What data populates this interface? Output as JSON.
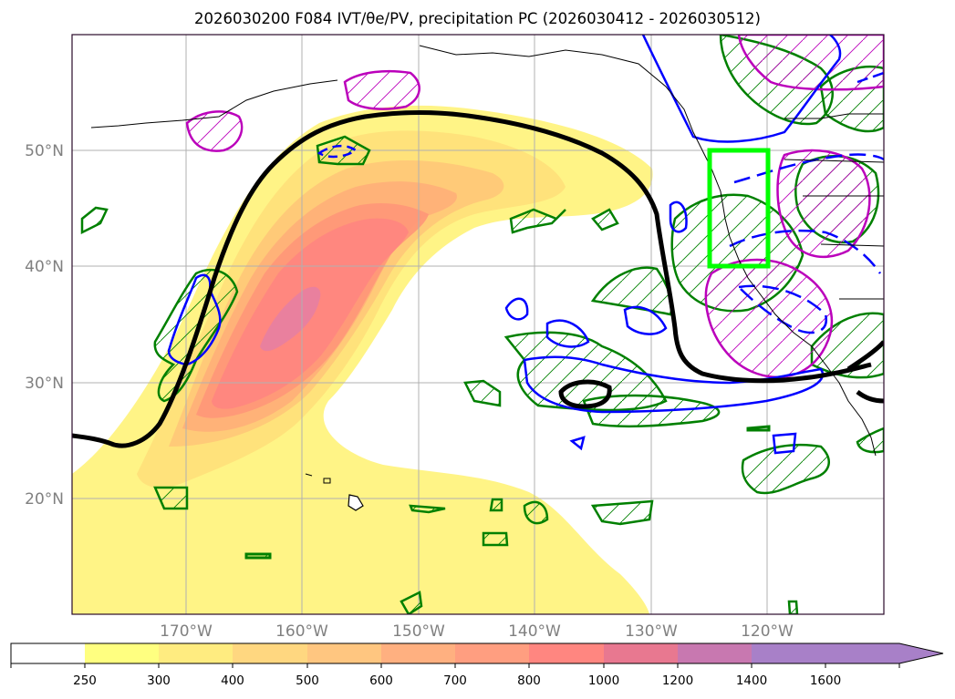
{
  "figure": {
    "title": "2026030200 F084 IVT/θe/PV, precipitation PC (2026030412 - 2026030512)"
  },
  "map": {
    "lon_range": [
      -180,
      -110
    ],
    "lat_range": [
      10,
      60
    ],
    "grid": true,
    "lat_labels": [
      "20°N",
      "30°N",
      "40°N",
      "50°N"
    ],
    "lat_values": [
      20,
      30,
      40,
      50
    ],
    "lon_labels": [
      "170°W",
      "160°W",
      "150°W",
      "140°W",
      "130°W",
      "120°W"
    ],
    "lon_values": [
      -170,
      -160,
      -150,
      -140,
      -130,
      -120
    ],
    "highlight_box": {
      "lon": [
        -125,
        -120
      ],
      "lat": [
        40,
        50
      ],
      "color": "#00ff00"
    }
  },
  "colorbar": {
    "ticks": [
      "250",
      "300",
      "400",
      "500",
      "600",
      "700",
      "800",
      "1000",
      "1200",
      "1400",
      "1600"
    ],
    "colors": [
      "#ffffff",
      "#ffff80",
      "#ffec80",
      "#ffd780",
      "#ffc680",
      "#ffb080",
      "#ff9e80",
      "#ff8680",
      "#e87890",
      "#c878b0",
      "#a880c8"
    ],
    "extend": "max"
  },
  "layers": {
    "ivt_colors": [
      "#fff380",
      "#ffe07a",
      "#ffc878",
      "#ffb078",
      "#ff9878",
      "#ff8680",
      "#e880a0"
    ],
    "theta_e_contour_color": "#000000",
    "pv_contour_color": "#0000ff",
    "precip_pc_contour_color": "#008000",
    "precip_pc_high_color": "#bb00bb"
  }
}
